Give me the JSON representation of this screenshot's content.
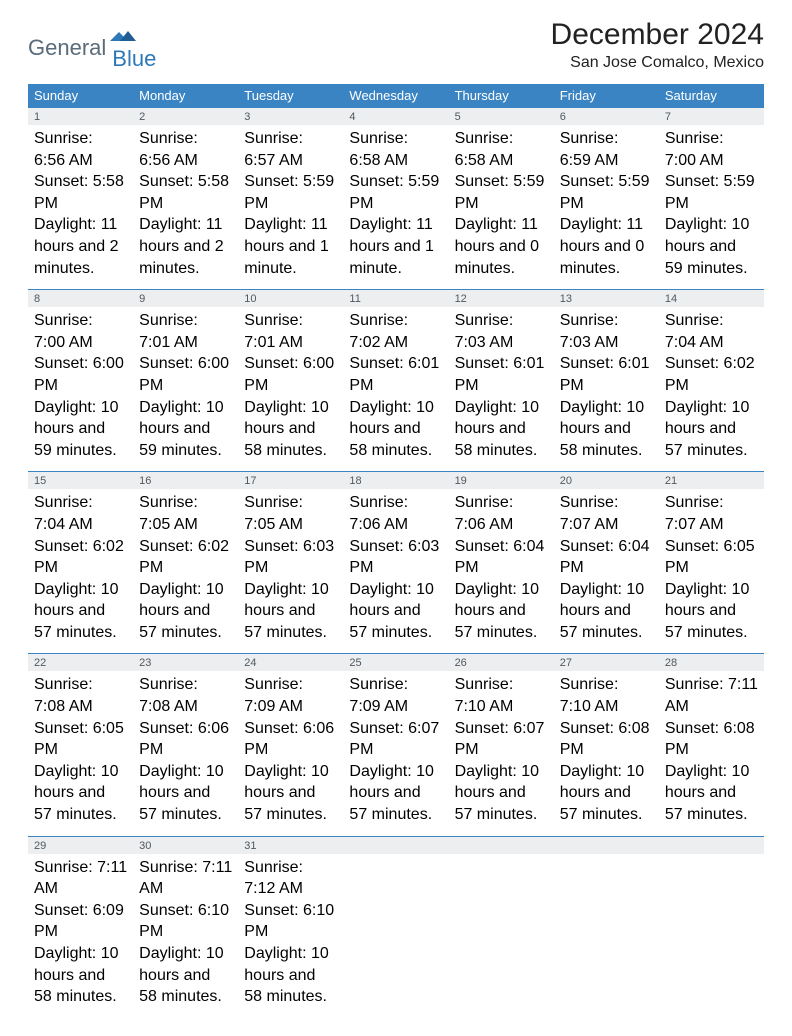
{
  "logo": {
    "part1": "General",
    "part2": "Blue"
  },
  "title": "December 2024",
  "location": "San Jose Comalco, Mexico",
  "colors": {
    "header_bg": "#3a84c4",
    "header_text": "#ffffff",
    "daynum_bg": "#eceeef",
    "daynum_text": "#505860",
    "text": "#323232",
    "logo_gray": "#5a6b7a",
    "logo_blue": "#2f78b8"
  },
  "day_headers": [
    "Sunday",
    "Monday",
    "Tuesday",
    "Wednesday",
    "Thursday",
    "Friday",
    "Saturday"
  ],
  "weeks": [
    [
      {
        "n": "1",
        "sr": "Sunrise: 6:56 AM",
        "ss": "Sunset: 5:58 PM",
        "dl": "Daylight: 11 hours and 2 minutes."
      },
      {
        "n": "2",
        "sr": "Sunrise: 6:56 AM",
        "ss": "Sunset: 5:58 PM",
        "dl": "Daylight: 11 hours and 2 minutes."
      },
      {
        "n": "3",
        "sr": "Sunrise: 6:57 AM",
        "ss": "Sunset: 5:59 PM",
        "dl": "Daylight: 11 hours and 1 minute."
      },
      {
        "n": "4",
        "sr": "Sunrise: 6:58 AM",
        "ss": "Sunset: 5:59 PM",
        "dl": "Daylight: 11 hours and 1 minute."
      },
      {
        "n": "5",
        "sr": "Sunrise: 6:58 AM",
        "ss": "Sunset: 5:59 PM",
        "dl": "Daylight: 11 hours and 0 minutes."
      },
      {
        "n": "6",
        "sr": "Sunrise: 6:59 AM",
        "ss": "Sunset: 5:59 PM",
        "dl": "Daylight: 11 hours and 0 minutes."
      },
      {
        "n": "7",
        "sr": "Sunrise: 7:00 AM",
        "ss": "Sunset: 5:59 PM",
        "dl": "Daylight: 10 hours and 59 minutes."
      }
    ],
    [
      {
        "n": "8",
        "sr": "Sunrise: 7:00 AM",
        "ss": "Sunset: 6:00 PM",
        "dl": "Daylight: 10 hours and 59 minutes."
      },
      {
        "n": "9",
        "sr": "Sunrise: 7:01 AM",
        "ss": "Sunset: 6:00 PM",
        "dl": "Daylight: 10 hours and 59 minutes."
      },
      {
        "n": "10",
        "sr": "Sunrise: 7:01 AM",
        "ss": "Sunset: 6:00 PM",
        "dl": "Daylight: 10 hours and 58 minutes."
      },
      {
        "n": "11",
        "sr": "Sunrise: 7:02 AM",
        "ss": "Sunset: 6:01 PM",
        "dl": "Daylight: 10 hours and 58 minutes."
      },
      {
        "n": "12",
        "sr": "Sunrise: 7:03 AM",
        "ss": "Sunset: 6:01 PM",
        "dl": "Daylight: 10 hours and 58 minutes."
      },
      {
        "n": "13",
        "sr": "Sunrise: 7:03 AM",
        "ss": "Sunset: 6:01 PM",
        "dl": "Daylight: 10 hours and 58 minutes."
      },
      {
        "n": "14",
        "sr": "Sunrise: 7:04 AM",
        "ss": "Sunset: 6:02 PM",
        "dl": "Daylight: 10 hours and 57 minutes."
      }
    ],
    [
      {
        "n": "15",
        "sr": "Sunrise: 7:04 AM",
        "ss": "Sunset: 6:02 PM",
        "dl": "Daylight: 10 hours and 57 minutes."
      },
      {
        "n": "16",
        "sr": "Sunrise: 7:05 AM",
        "ss": "Sunset: 6:02 PM",
        "dl": "Daylight: 10 hours and 57 minutes."
      },
      {
        "n": "17",
        "sr": "Sunrise: 7:05 AM",
        "ss": "Sunset: 6:03 PM",
        "dl": "Daylight: 10 hours and 57 minutes."
      },
      {
        "n": "18",
        "sr": "Sunrise: 7:06 AM",
        "ss": "Sunset: 6:03 PM",
        "dl": "Daylight: 10 hours and 57 minutes."
      },
      {
        "n": "19",
        "sr": "Sunrise: 7:06 AM",
        "ss": "Sunset: 6:04 PM",
        "dl": "Daylight: 10 hours and 57 minutes."
      },
      {
        "n": "20",
        "sr": "Sunrise: 7:07 AM",
        "ss": "Sunset: 6:04 PM",
        "dl": "Daylight: 10 hours and 57 minutes."
      },
      {
        "n": "21",
        "sr": "Sunrise: 7:07 AM",
        "ss": "Sunset: 6:05 PM",
        "dl": "Daylight: 10 hours and 57 minutes."
      }
    ],
    [
      {
        "n": "22",
        "sr": "Sunrise: 7:08 AM",
        "ss": "Sunset: 6:05 PM",
        "dl": "Daylight: 10 hours and 57 minutes."
      },
      {
        "n": "23",
        "sr": "Sunrise: 7:08 AM",
        "ss": "Sunset: 6:06 PM",
        "dl": "Daylight: 10 hours and 57 minutes."
      },
      {
        "n": "24",
        "sr": "Sunrise: 7:09 AM",
        "ss": "Sunset: 6:06 PM",
        "dl": "Daylight: 10 hours and 57 minutes."
      },
      {
        "n": "25",
        "sr": "Sunrise: 7:09 AM",
        "ss": "Sunset: 6:07 PM",
        "dl": "Daylight: 10 hours and 57 minutes."
      },
      {
        "n": "26",
        "sr": "Sunrise: 7:10 AM",
        "ss": "Sunset: 6:07 PM",
        "dl": "Daylight: 10 hours and 57 minutes."
      },
      {
        "n": "27",
        "sr": "Sunrise: 7:10 AM",
        "ss": "Sunset: 6:08 PM",
        "dl": "Daylight: 10 hours and 57 minutes."
      },
      {
        "n": "28",
        "sr": "Sunrise: 7:11 AM",
        "ss": "Sunset: 6:08 PM",
        "dl": "Daylight: 10 hours and 57 minutes."
      }
    ],
    [
      {
        "n": "29",
        "sr": "Sunrise: 7:11 AM",
        "ss": "Sunset: 6:09 PM",
        "dl": "Daylight: 10 hours and 58 minutes."
      },
      {
        "n": "30",
        "sr": "Sunrise: 7:11 AM",
        "ss": "Sunset: 6:10 PM",
        "dl": "Daylight: 10 hours and 58 minutes."
      },
      {
        "n": "31",
        "sr": "Sunrise: 7:12 AM",
        "ss": "Sunset: 6:10 PM",
        "dl": "Daylight: 10 hours and 58 minutes."
      },
      null,
      null,
      null,
      null
    ]
  ]
}
